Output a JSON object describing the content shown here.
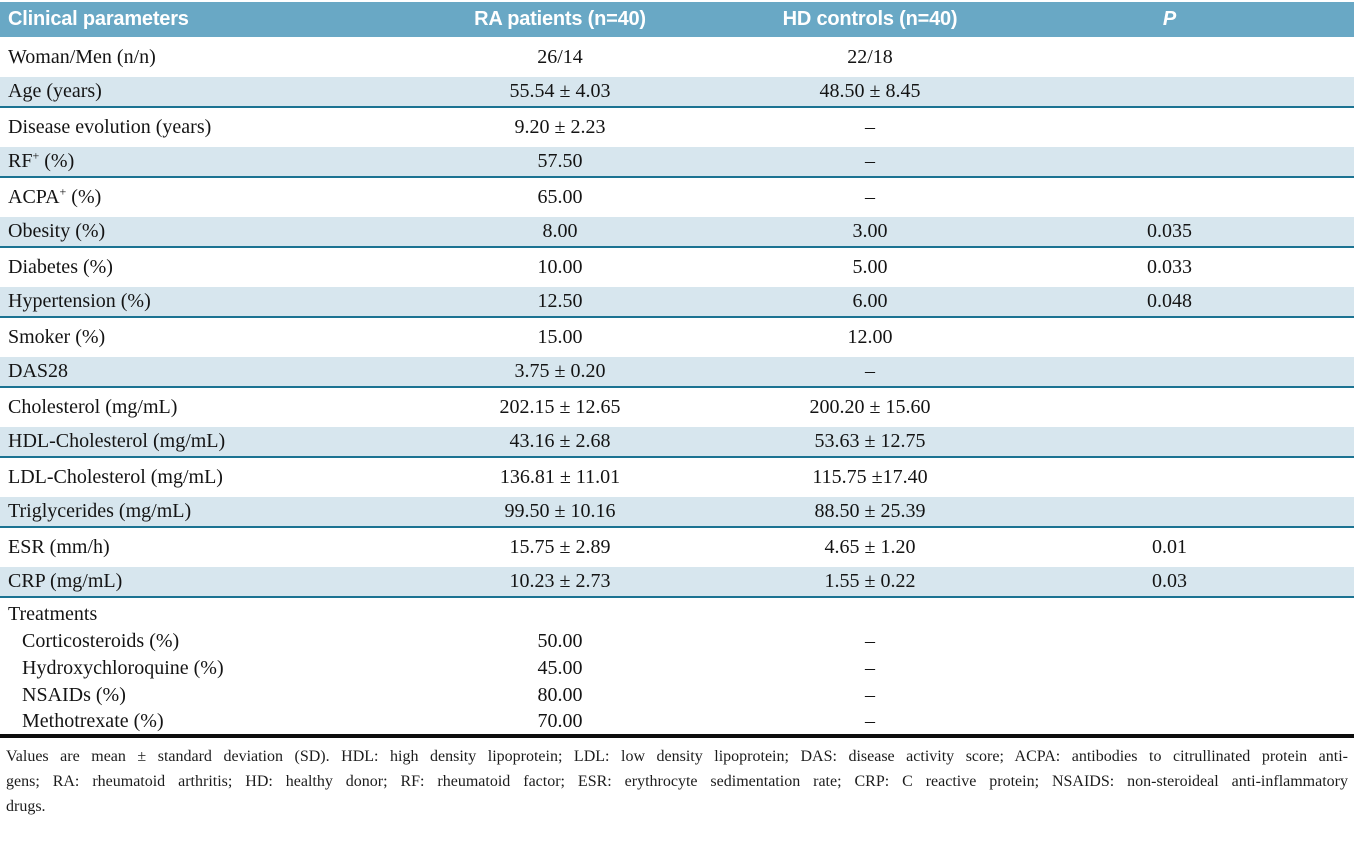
{
  "colors": {
    "header_bg": "#69a8c5",
    "row_shade": "#d7e6ee",
    "divider": "#1b7392"
  },
  "table": {
    "columns": [
      "Clinical parameters",
      "RA patients (n=40)",
      "HD controls (n=40)",
      "P"
    ],
    "rows": [
      {
        "label": "Woman/Men (n/n)",
        "ra": "26/14",
        "hd": "22/18",
        "p": "",
        "kind": "tall"
      },
      {
        "label": "Age (years)",
        "ra": "55.54 ± 4.03",
        "hd": "48.50 ± 8.45",
        "p": "",
        "kind": "shaded"
      },
      {
        "label": "Disease evolution (years)",
        "ra": "9.20 ± 2.23",
        "hd": "–",
        "p": "",
        "kind": "tall"
      },
      {
        "label": "RF^+ (%)",
        "ra": "57.50",
        "hd": "–",
        "p": "",
        "kind": "shaded"
      },
      {
        "label": "ACPA^+ (%)",
        "ra": "65.00",
        "hd": "–",
        "p": "",
        "kind": "tall"
      },
      {
        "label": "Obesity (%)",
        "ra": "8.00",
        "hd": "3.00",
        "p": "0.035",
        "kind": "shaded"
      },
      {
        "label": "Diabetes (%)",
        "ra": "10.00",
        "hd": "5.00",
        "p": "0.033",
        "kind": "tall"
      },
      {
        "label": "Hypertension (%)",
        "ra": "12.50",
        "hd": "6.00",
        "p": "0.048",
        "kind": "shaded"
      },
      {
        "label": "Smoker (%)",
        "ra": "15.00",
        "hd": "12.00",
        "p": "",
        "kind": "tall"
      },
      {
        "label": "DAS28",
        "ra": "3.75 ± 0.20",
        "hd": "–",
        "p": "",
        "kind": "shaded"
      },
      {
        "label": "Cholesterol (mg/mL)",
        "ra": "202.15 ± 12.65",
        "hd": "200.20 ± 15.60",
        "p": "",
        "kind": "tall"
      },
      {
        "label": "HDL-Cholesterol (mg/mL)",
        "ra": "43.16 ± 2.68",
        "hd": "53.63 ± 12.75",
        "p": "",
        "kind": "shaded"
      },
      {
        "label": "LDL-Cholesterol (mg/mL)",
        "ra": "136.81 ± 11.01",
        "hd": "115.75 ±17.40",
        "p": "",
        "kind": "tall"
      },
      {
        "label": "Triglycerides (mg/mL)",
        "ra": "99.50 ± 10.16",
        "hd": "88.50 ± 25.39",
        "p": "",
        "kind": "shaded"
      },
      {
        "label": "ESR (mm/h)",
        "ra": "15.75 ± 2.89",
        "hd": "4.65 ± 1.20",
        "p": "0.01",
        "kind": "tall"
      },
      {
        "label": "CRP (mg/mL)",
        "ra": "10.23 ± 2.73",
        "hd": "1.55 ± 0.22",
        "p": "0.03",
        "kind": "shaded"
      },
      {
        "label": "Treatments",
        "ra": "",
        "hd": "",
        "p": "",
        "kind": "section"
      },
      {
        "label": "Corticosteroids (%)",
        "ra": "50.00",
        "hd": "–",
        "p": "",
        "kind": "sub"
      },
      {
        "label": "Hydroxychloroquine (%)",
        "ra": "45.00",
        "hd": "–",
        "p": "",
        "kind": "sub"
      },
      {
        "label": "NSAIDs (%)",
        "ra": "80.00",
        "hd": "–",
        "p": "",
        "kind": "sub"
      },
      {
        "label": "Methotrexate (%)",
        "ra": "70.00",
        "hd": "–",
        "p": "",
        "kind": "sub"
      }
    ]
  },
  "footnote": {
    "lines": [
      "Values are mean ± standard deviation (SD). HDL: high density lipoprotein; LDL: low density lipoprotein; DAS: disease activity score; ACPA: antibodies to citrullinated protein anti-",
      "gens; RA: rheumatoid arthritis; HD: healthy donor; RF: rheumatoid factor; ESR: erythrocyte sedimentation rate; CRP: C reactive protein; NSAIDS: non-steroideal anti-inflammatory",
      "drugs."
    ]
  }
}
